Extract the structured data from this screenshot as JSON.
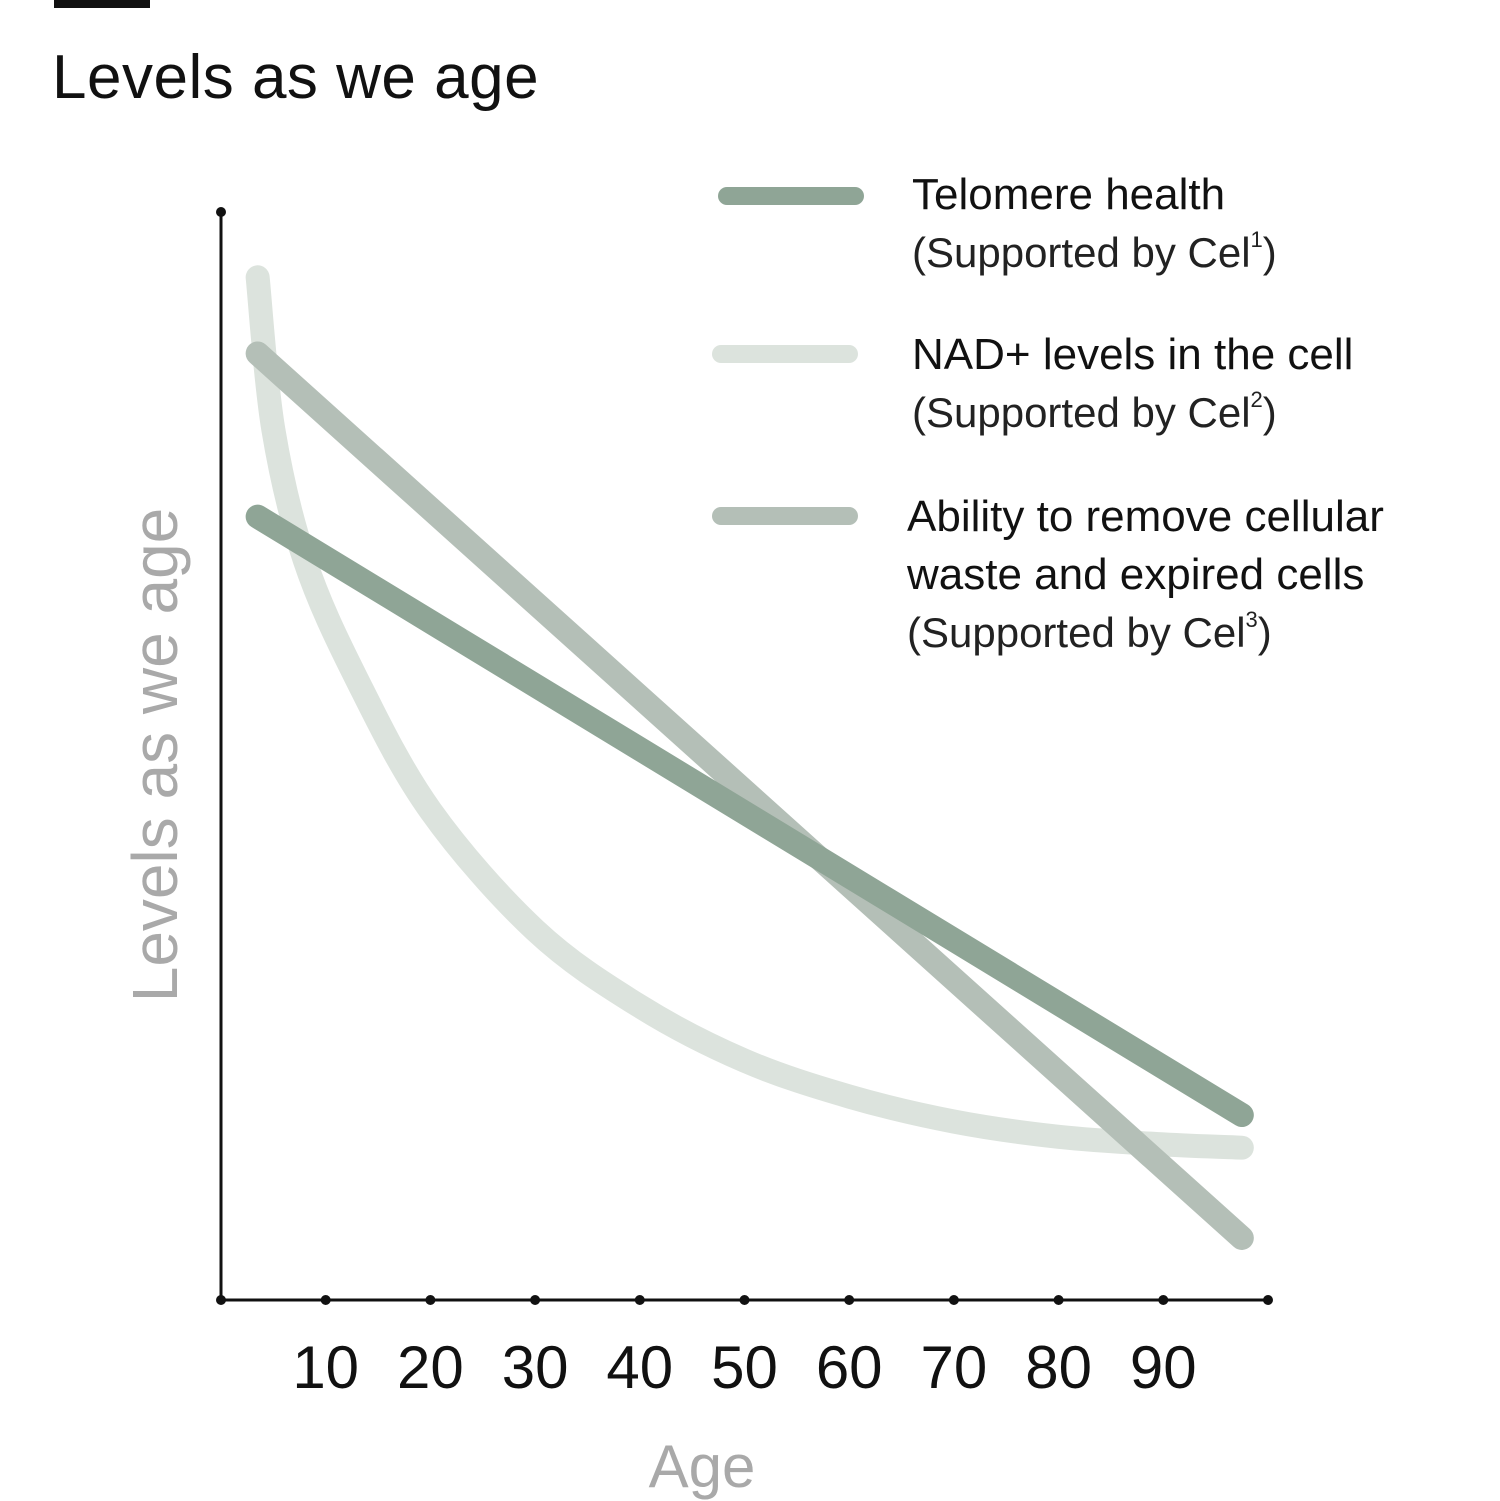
{
  "chart_data": {
    "type": "line",
    "title": "Levels as we age",
    "xlabel": "Age",
    "ylabel": "Levels as we age",
    "x_ticks": [
      10,
      20,
      30,
      40,
      50,
      60,
      70,
      80,
      90
    ],
    "xlim": [
      0,
      100
    ],
    "ylim": [
      0,
      100
    ],
    "legend_position": "top-right",
    "grid": false,
    "series": [
      {
        "name": "Telomere health",
        "note": "(Supported by Cel",
        "note_sup": "1",
        "note_end": ")",
        "color": "#8fa596",
        "points": [
          [
            3.5,
            72
          ],
          [
            97.5,
            17
          ]
        ]
      },
      {
        "name": "NAD+ levels in the cell",
        "note": "(Supported by Cel",
        "note_sup": "2",
        "note_end": ")",
        "color": "#dce3dd",
        "points": [
          [
            3.5,
            94
          ],
          [
            5,
            80
          ],
          [
            8,
            68
          ],
          [
            13,
            57
          ],
          [
            20,
            45
          ],
          [
            30,
            34
          ],
          [
            40,
            27
          ],
          [
            50,
            22
          ],
          [
            60,
            18.7
          ],
          [
            70,
            16.4
          ],
          [
            80,
            15
          ],
          [
            90,
            14.3
          ],
          [
            97.5,
            14
          ]
        ]
      },
      {
        "name": "Ability to remove cellular waste and expired cells",
        "name_lines": [
          "Ability to remove cellular",
          "waste and expired cells"
        ],
        "note": "(Supported by Cel",
        "note_sup": "3",
        "note_end": ")",
        "color": "#b4bfb7",
        "points": [
          [
            3.5,
            87
          ],
          [
            97.5,
            5.7
          ]
        ]
      }
    ]
  }
}
